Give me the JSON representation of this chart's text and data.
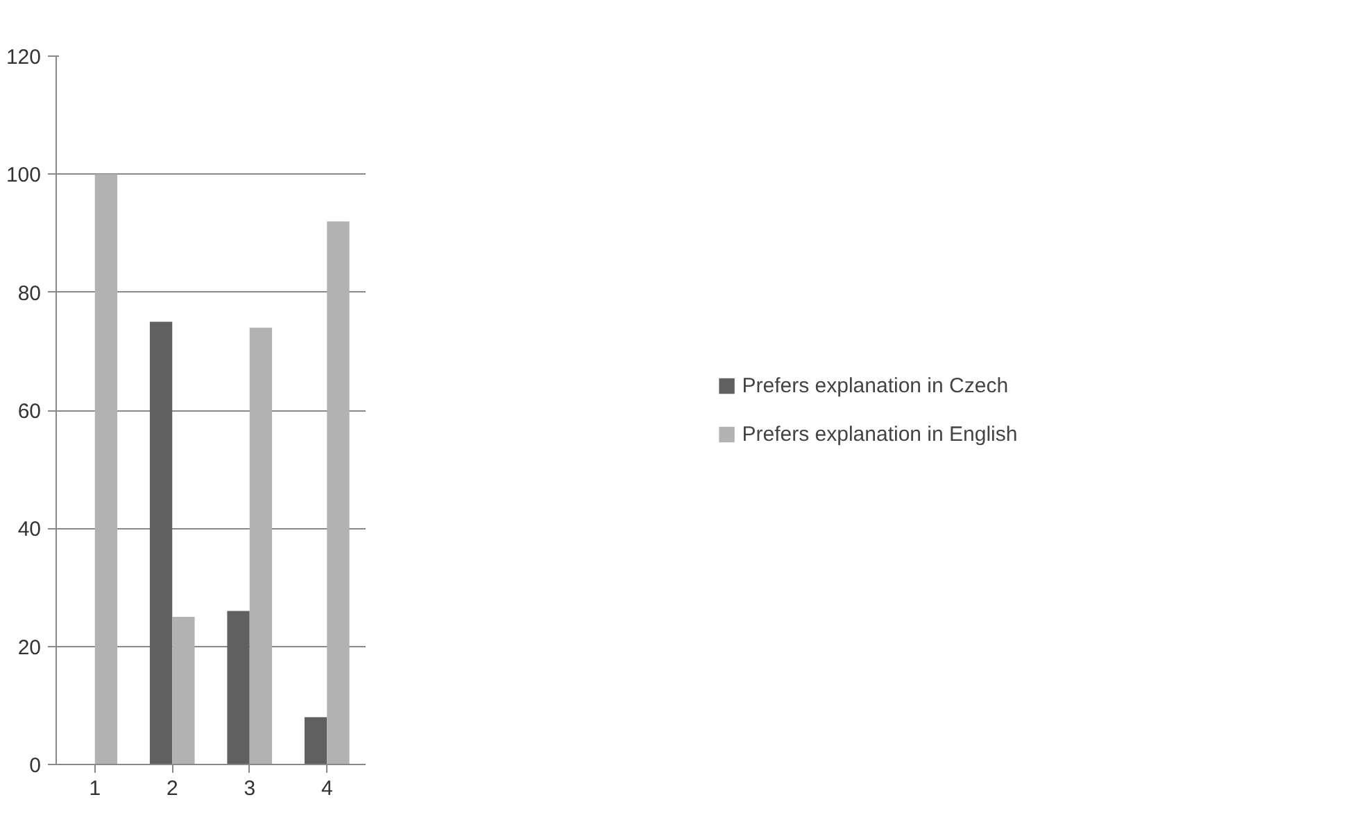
{
  "chart_data": {
    "type": "bar",
    "categories": [
      "1",
      "2",
      "3",
      "4"
    ],
    "series": [
      {
        "name": "Prefers explanation in Czech",
        "color": "#606060",
        "values": [
          0,
          75,
          26,
          8
        ]
      },
      {
        "name": "Prefers explanation in English",
        "color": "#b2b2b2",
        "values": [
          100,
          25,
          74,
          92
        ]
      }
    ],
    "ylim": [
      0,
      120
    ],
    "yticks": [
      0,
      20,
      40,
      60,
      80,
      100,
      120
    ],
    "grid": "y",
    "legend": "right"
  }
}
